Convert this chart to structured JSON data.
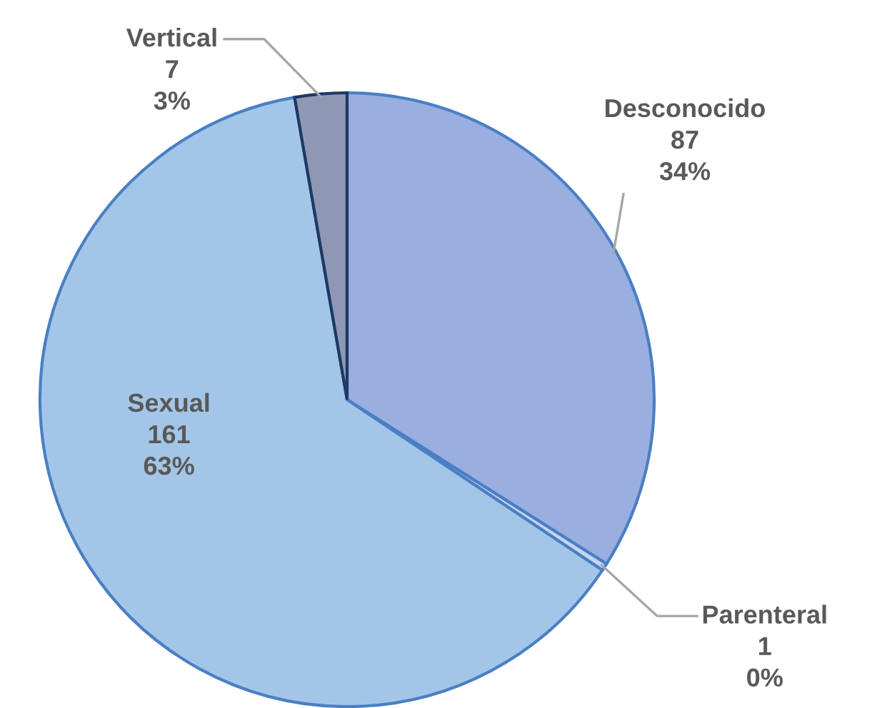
{
  "chart_data": {
    "type": "pie",
    "categories": [
      "Desconocido",
      "Parenteral",
      "Sexual",
      "Vertical"
    ],
    "values": [
      87,
      1,
      161,
      7
    ],
    "colors": [
      "#9aaee0",
      "#c6d4ee",
      "#a3c6e8",
      "#8e98b4"
    ],
    "value_labels": [
      "87\n34%",
      "1\n0%",
      "161\n63%",
      "7\n3%"
    ],
    "legend": false
  }
}
